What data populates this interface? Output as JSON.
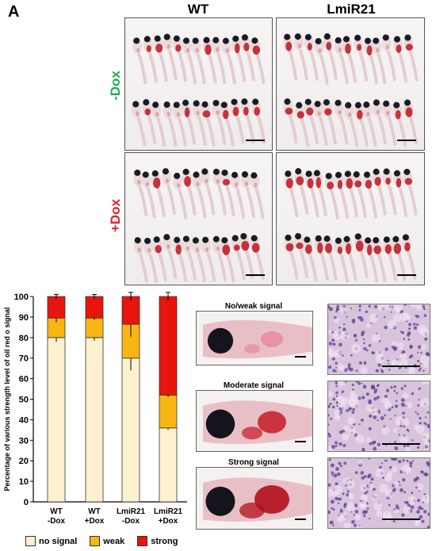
{
  "panel_label": "A",
  "column_titles": [
    "WT",
    "LmiR21"
  ],
  "row_labels": [
    {
      "text": "-Dox",
      "color": "#1fae4f"
    },
    {
      "text": "+Dox",
      "color": "#e8202a"
    }
  ],
  "examples": [
    {
      "title": "No/weak signal"
    },
    {
      "title": "Moderate signal"
    },
    {
      "title": "Strong signal"
    }
  ],
  "colors": {
    "no_signal": "#fdf1d0",
    "weak": "#f8b614",
    "strong": "#e8150f"
  },
  "chart_data": {
    "type": "bar",
    "stacked": true,
    "categories": [
      "WT -Dox",
      "WT +Dox",
      "LmiR21 -Dox",
      "LmiR21 +Dox"
    ],
    "category_lines": [
      [
        "WT",
        "-Dox"
      ],
      [
        "WT",
        "+Dox"
      ],
      [
        "LmiR21",
        "-Dox"
      ],
      [
        "LmiR21",
        "+Dox"
      ]
    ],
    "series": [
      {
        "name": "no signal",
        "values": [
          80,
          80,
          70,
          36
        ],
        "errors": [
          2,
          1.5,
          6,
          1
        ]
      },
      {
        "name": "weak",
        "values": [
          9.5,
          9.5,
          16.5,
          16
        ],
        "errors": [
          2,
          1,
          6,
          1
        ]
      },
      {
        "name": "strong",
        "values": [
          10.5,
          10.5,
          13.5,
          48
        ],
        "errors": [
          1,
          1,
          2,
          2
        ]
      }
    ],
    "ylabel": "Percentage of various strength level of oil red o signal",
    "ylim": [
      0,
      100
    ],
    "yticks": [
      0,
      10,
      20,
      30,
      40,
      50,
      60,
      70,
      80,
      90,
      100
    ],
    "legend_position": "bottom"
  }
}
